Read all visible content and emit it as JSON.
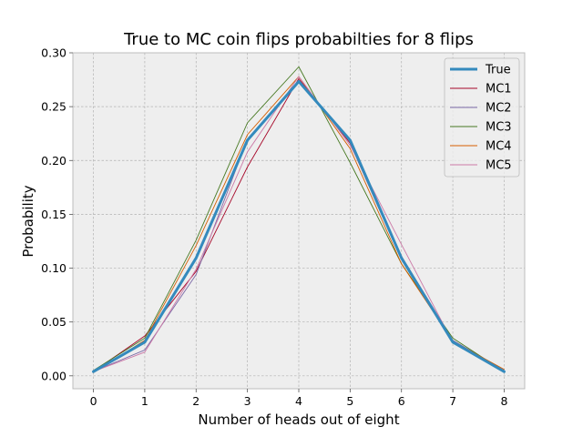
{
  "chart_data": {
    "type": "line",
    "title": "True to MC coin flips probabilties for 8 flips",
    "xlabel": "Number of heads out of eight",
    "ylabel": "Probability",
    "x": [
      0,
      1,
      2,
      3,
      4,
      5,
      6,
      7,
      8
    ],
    "xlim": [
      -0.4,
      8.4
    ],
    "ylim": [
      -0.012,
      0.3
    ],
    "xticks": [
      0,
      1,
      2,
      3,
      4,
      5,
      6,
      7,
      8
    ],
    "yticks": [
      0.0,
      0.05,
      0.1,
      0.15,
      0.2,
      0.25,
      0.3
    ],
    "ytick_labels": [
      "0.00",
      "0.05",
      "0.10",
      "0.15",
      "0.20",
      "0.25",
      "0.30"
    ],
    "grid": true,
    "legend_position": "upper right",
    "series": [
      {
        "name": "True",
        "color": "#348abd",
        "values": [
          0.0039,
          0.0313,
          0.1094,
          0.2188,
          0.2734,
          0.2188,
          0.1094,
          0.0313,
          0.0039
        ]
      },
      {
        "name": "MC1",
        "color": "#a60628",
        "values": [
          0.004,
          0.037,
          0.097,
          0.194,
          0.276,
          0.216,
          0.108,
          0.031,
          0.004
        ]
      },
      {
        "name": "MC2",
        "color": "#7a68a6",
        "values": [
          0.004,
          0.024,
          0.094,
          0.22,
          0.274,
          0.219,
          0.111,
          0.033,
          0.005
        ]
      },
      {
        "name": "MC3",
        "color": "#467821",
        "values": [
          0.005,
          0.035,
          0.126,
          0.235,
          0.287,
          0.198,
          0.104,
          0.035,
          0.004
        ]
      },
      {
        "name": "MC4",
        "color": "#d55e00",
        "values": [
          0.003,
          0.033,
          0.121,
          0.224,
          0.278,
          0.211,
          0.104,
          0.032,
          0.006
        ]
      },
      {
        "name": "MC5",
        "color": "#cc79a7",
        "values": [
          0.004,
          0.022,
          0.099,
          0.208,
          0.278,
          0.214,
          0.122,
          0.031,
          0.004
        ]
      }
    ],
    "background_color": "#eeeeee",
    "grid_color": "#b2b2b2",
    "frame_color": "#bcbcbc"
  }
}
